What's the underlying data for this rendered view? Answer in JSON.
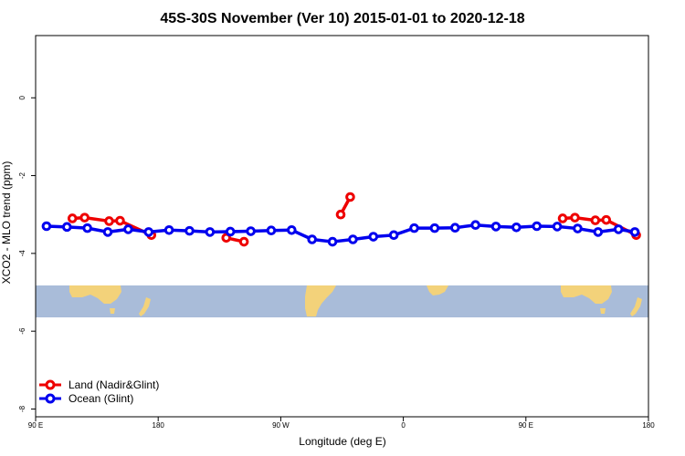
{
  "chart_data": {
    "type": "line",
    "title": "45S-30S November (Ver 10)   2015-01-01 to 2020-12-18",
    "xlabel": "Longitude (deg E)",
    "ylabel": "XCO2 - MLO trend (ppm)",
    "xlim": [
      90,
      540
    ],
    "ylim": [
      -8.2,
      1.6
    ],
    "x_ticks": [
      {
        "value": 90,
        "label": "90 E"
      },
      {
        "value": 180,
        "label": "180"
      },
      {
        "value": 270,
        "label": "90 W"
      },
      {
        "value": 360,
        "label": "0"
      },
      {
        "value": 450,
        "label": "90 E"
      },
      {
        "value": 540,
        "label": "180"
      }
    ],
    "y_ticks": [
      {
        "value": 0,
        "label": "0"
      },
      {
        "value": -2,
        "label": "-2"
      },
      {
        "value": -4,
        "label": "-4"
      },
      {
        "value": -6,
        "label": "-6"
      },
      {
        "value": -8,
        "label": "-8"
      }
    ],
    "grid": false,
    "legend_position": "bottom-left",
    "background_map": {
      "description": "world map strip of land (yellow) and ocean (blue)",
      "ocean_color": "#a9bcd9",
      "land_color": "#f3d27a"
    },
    "series": [
      {
        "name": "Land (Nadir&Glint)",
        "color": "#ee0000",
        "segments": [
          [
            [
              117,
              -3.1
            ],
            [
              126,
              -3.08
            ],
            [
              144,
              -3.17
            ],
            [
              152,
              -3.16
            ],
            [
              175,
              -3.53
            ]
          ],
          [
            [
              230,
              -3.6
            ],
            [
              243,
              -3.7
            ]
          ],
          [
            [
              314,
              -3.0
            ],
            [
              321,
              -2.55
            ]
          ],
          [
            [
              477,
              -3.1
            ],
            [
              486,
              -3.08
            ],
            [
              501,
              -3.15
            ],
            [
              509,
              -3.14
            ],
            [
              531,
              -3.53
            ]
          ]
        ]
      },
      {
        "name": "Ocean (Glint)",
        "color": "#0000ee",
        "segments": [
          [
            [
              98,
              -3.3
            ],
            [
              113,
              -3.32
            ],
            [
              128,
              -3.35
            ],
            [
              143,
              -3.45
            ],
            [
              158,
              -3.38
            ],
            [
              173,
              -3.45
            ],
            [
              188,
              -3.4
            ],
            [
              203,
              -3.42
            ],
            [
              218,
              -3.45
            ],
            [
              233,
              -3.44
            ],
            [
              248,
              -3.43
            ],
            [
              263,
              -3.41
            ],
            [
              278,
              -3.4
            ],
            [
              293,
              -3.64
            ],
            [
              308,
              -3.7
            ],
            [
              323,
              -3.64
            ],
            [
              338,
              -3.57
            ],
            [
              353,
              -3.53
            ],
            [
              368,
              -3.35
            ],
            [
              383,
              -3.35
            ],
            [
              398,
              -3.34
            ],
            [
              413,
              -3.27
            ],
            [
              428,
              -3.31
            ],
            [
              443,
              -3.33
            ],
            [
              458,
              -3.3
            ],
            [
              473,
              -3.31
            ],
            [
              488,
              -3.36
            ],
            [
              503,
              -3.45
            ],
            [
              518,
              -3.38
            ],
            [
              530,
              -3.45
            ]
          ]
        ]
      }
    ]
  }
}
